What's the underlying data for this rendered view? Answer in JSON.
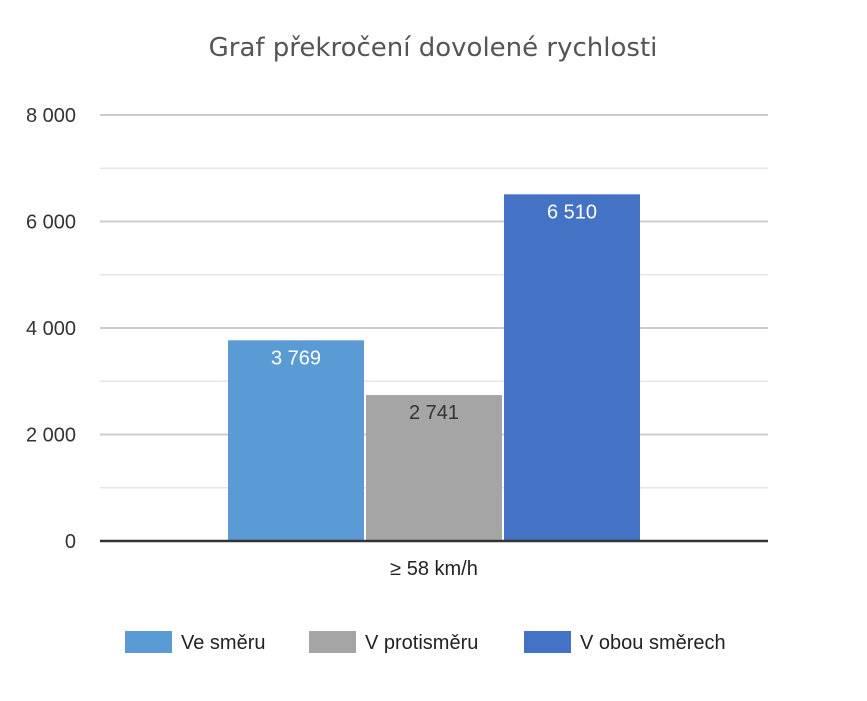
{
  "chart_data": {
    "type": "bar",
    "title": "Graf překročení dovolené rychlosti",
    "xlabel": "",
    "ylabel": "",
    "categories": [
      "≥ 58 km/h"
    ],
    "series": [
      {
        "name": "Ve směru",
        "values": [
          3769
        ],
        "label": "3 769",
        "color": "#5b9bd5",
        "label_color": "#ffffff"
      },
      {
        "name": "V protisměru",
        "values": [
          2741
        ],
        "label": "2 741",
        "color": "#a5a5a5",
        "label_color": "#333333"
      },
      {
        "name": "V obou směrech",
        "values": [
          6510
        ],
        "label": "6 510",
        "color": "#4472c4",
        "label_color": "#ffffff"
      }
    ],
    "ylim": [
      0,
      8000
    ],
    "yticks": [
      {
        "value": 0,
        "label": "0"
      },
      {
        "value": 2000,
        "label": "2 000"
      },
      {
        "value": 4000,
        "label": "4 000"
      },
      {
        "value": 6000,
        "label": "6 000"
      },
      {
        "value": 8000,
        "label": "8 000"
      }
    ],
    "minor_step": 1000,
    "grid": true,
    "legend_position": "bottom"
  }
}
